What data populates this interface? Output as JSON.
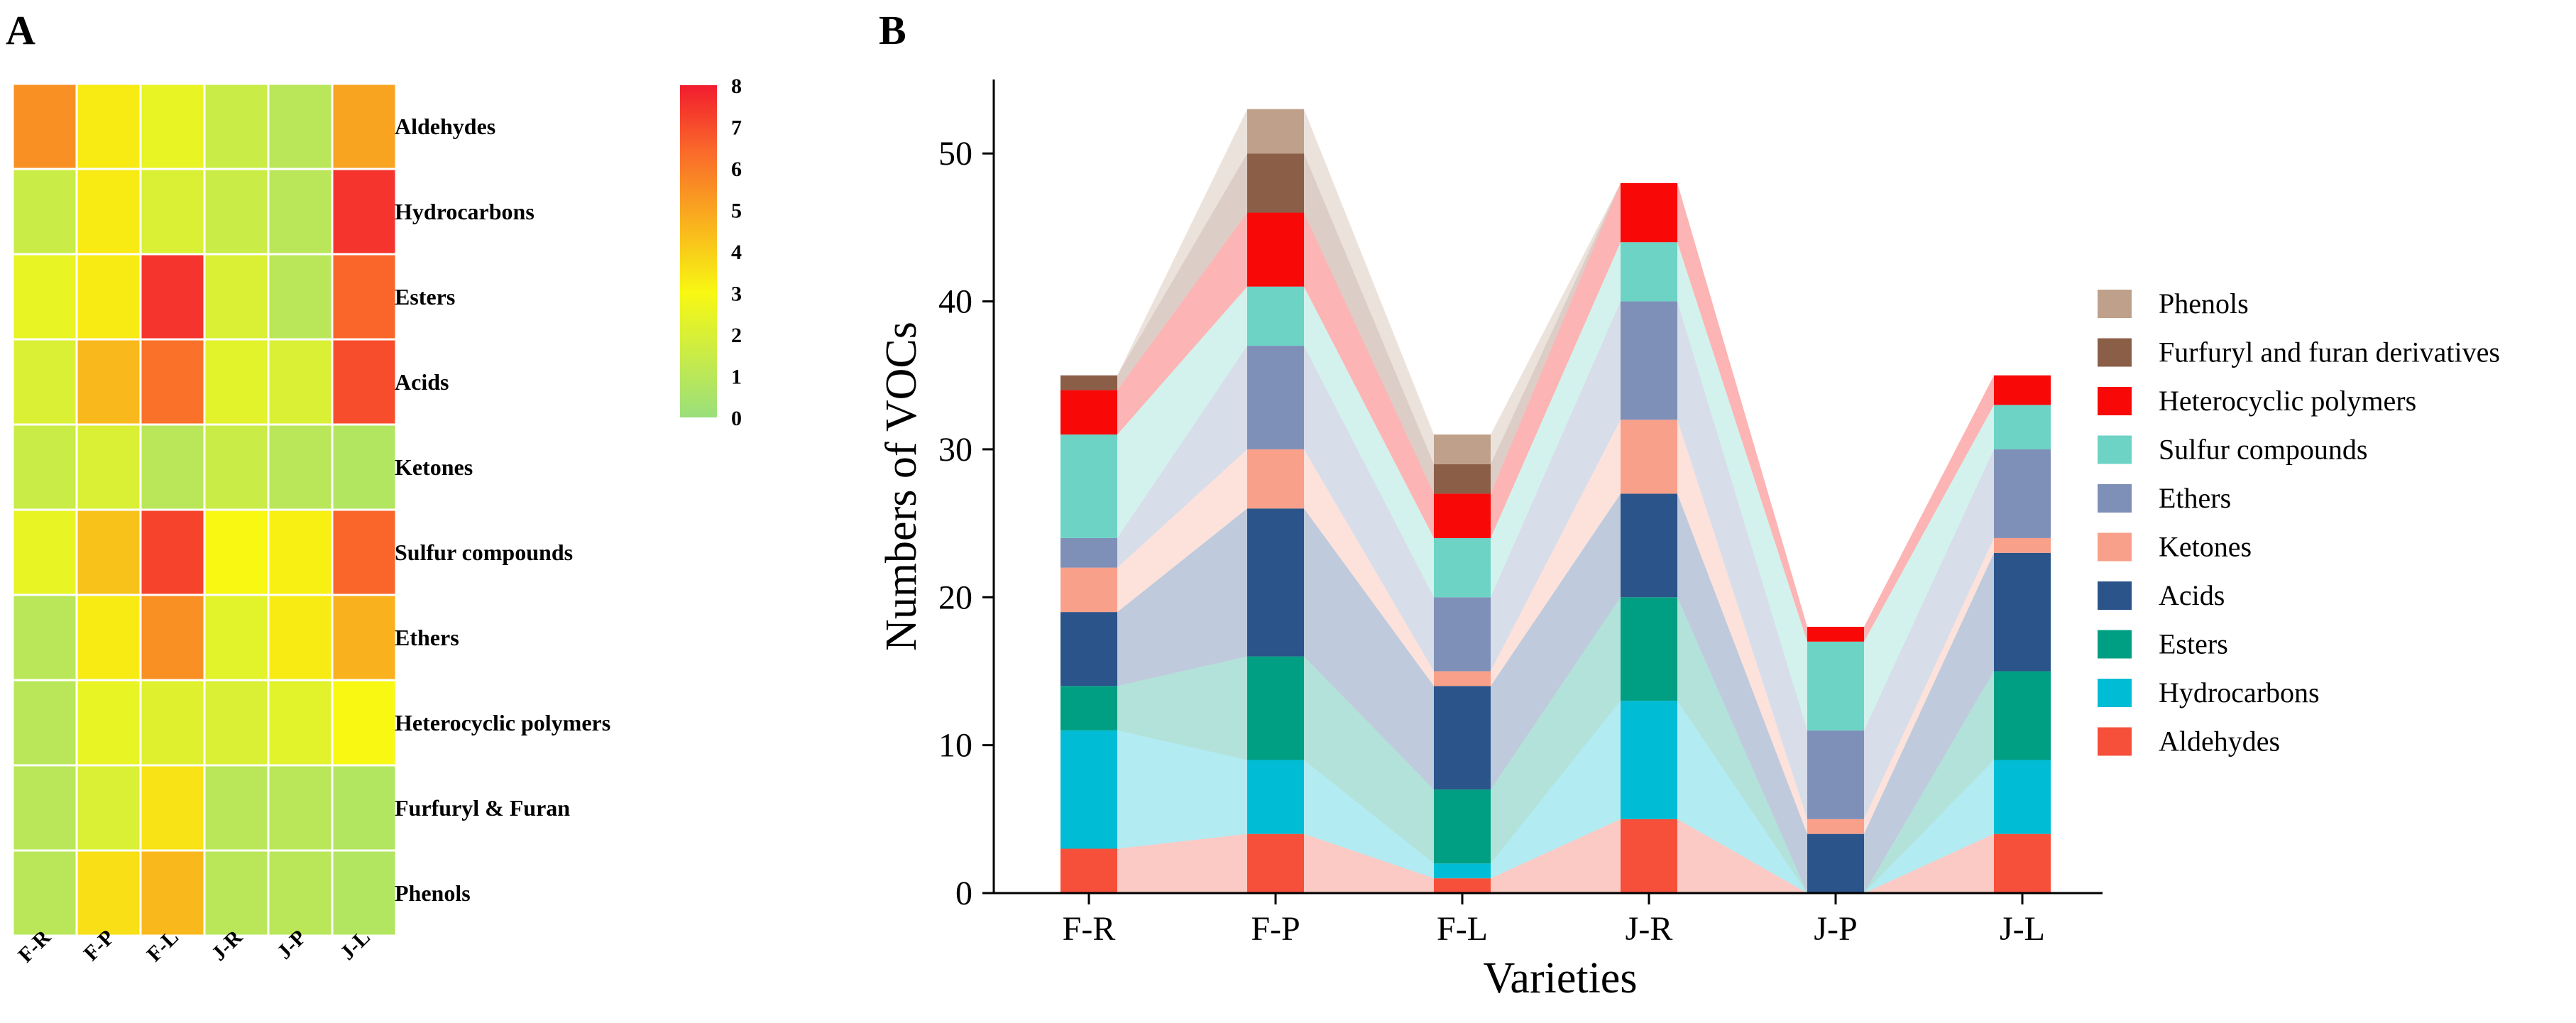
{
  "panels": {
    "a_label": "A",
    "b_label": "B"
  },
  "colors": {
    "heat_low": "#9ADF7C",
    "heat_mid": "#F8F812",
    "heat_orange": "#FA6A2A",
    "heat_high": "#F21C2E",
    "cell_border": "#FFFFFF",
    "series": {
      "Aldehydes": "#F64F3A",
      "Hydrocarbons": "#00BCD4",
      "Esters": "#009E82",
      "Acids": "#2A548A",
      "Ketones": "#F8A08A",
      "Ethers": "#7E90B8",
      "Sulfur compounds": "#6CD3C5",
      "Heterocyclic polymers": "#F90808",
      "Furfuryl and furan derivatives": "#8B5E47",
      "Phenols": "#BFA08A"
    }
  },
  "chart_data": [
    {
      "type": "heatmap",
      "title": "",
      "rows": [
        "Aldehydes",
        "Hydrocarbons",
        "Esters",
        "Acids",
        "Ketones",
        "Sulfur compounds",
        "Ethers",
        "Heterocyclic polymers",
        "Furfuryl & Furan",
        "Phenols"
      ],
      "columns": [
        "F-R",
        "F-P",
        "F-L",
        "J-R",
        "J-P",
        "J-L"
      ],
      "values": [
        [
          5.5,
          3.3,
          2.5,
          1.5,
          1.0,
          5.0
        ],
        [
          1.5,
          3.3,
          2.0,
          1.5,
          1.0,
          7.5
        ],
        [
          2.5,
          3.3,
          7.5,
          2.0,
          1.0,
          6.5
        ],
        [
          2.0,
          4.5,
          6.2,
          2.3,
          2.0,
          7.0
        ],
        [
          1.5,
          2.0,
          1.0,
          1.5,
          1.0,
          0.8
        ],
        [
          2.5,
          4.3,
          7.2,
          3.0,
          3.2,
          6.5
        ],
        [
          1.0,
          3.3,
          5.5,
          2.3,
          3.3,
          4.7
        ],
        [
          1.0,
          2.5,
          2.2,
          2.0,
          2.3,
          3.0
        ],
        [
          1.0,
          2.0,
          3.5,
          1.0,
          1.0,
          0.8
        ],
        [
          1.0,
          3.6,
          4.5,
          1.0,
          1.0,
          0.8
        ]
      ],
      "colorbar": {
        "min": 0,
        "max": 8,
        "ticks": [
          0,
          1,
          2,
          3,
          4,
          5,
          6,
          7,
          8
        ]
      }
    },
    {
      "type": "bar",
      "stacked": true,
      "title": "",
      "xlabel": "Varieties",
      "ylabel": "Numbers of VOCs",
      "ylim": [
        0,
        55
      ],
      "yticks": [
        0,
        10,
        20,
        30,
        40,
        50
      ],
      "categories": [
        "F-R",
        "F-P",
        "F-L",
        "J-R",
        "J-P",
        "J-L"
      ],
      "series": [
        {
          "name": "Aldehydes",
          "values": [
            3,
            4,
            1,
            5,
            0,
            4
          ]
        },
        {
          "name": "Hydrocarbons",
          "values": [
            8,
            5,
            1,
            8,
            0,
            5
          ]
        },
        {
          "name": "Esters",
          "values": [
            3,
            7,
            5,
            7,
            0,
            6
          ]
        },
        {
          "name": "Acids",
          "values": [
            5,
            10,
            7,
            7,
            4,
            8
          ]
        },
        {
          "name": "Ketones",
          "values": [
            3,
            4,
            1,
            5,
            1,
            1
          ]
        },
        {
          "name": "Ethers",
          "values": [
            2,
            7,
            5,
            8,
            6,
            6
          ]
        },
        {
          "name": "Sulfur compounds",
          "values": [
            7,
            4,
            4,
            4,
            6,
            3
          ]
        },
        {
          "name": "Heterocyclic polymers",
          "values": [
            3,
            5,
            3,
            4,
            1,
            2
          ]
        },
        {
          "name": "Furfuryl and furan derivatives",
          "values": [
            1,
            4,
            2,
            0,
            0,
            0
          ]
        },
        {
          "name": "Phenols",
          "values": [
            0,
            3,
            2,
            0,
            0,
            0
          ]
        }
      ],
      "legend_order": [
        "Phenols",
        "Furfuryl and furan derivatives",
        "Heterocyclic polymers",
        "Sulfur compounds",
        "Ethers",
        "Ketones",
        "Acids",
        "Esters",
        "Hydrocarbons",
        "Aldehydes"
      ],
      "legend_position": "right"
    }
  ]
}
